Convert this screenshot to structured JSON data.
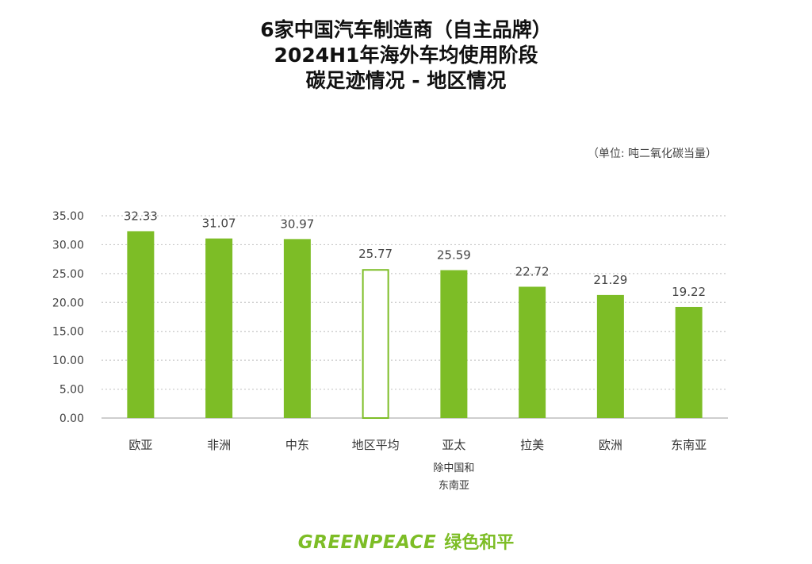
{
  "title_lines": [
    "6家中国汽车制造商（自主品牌）",
    "2024H1年海外车均使用阶段",
    "碳足迹情况 - 地区情况"
  ],
  "unit_note": "（单位: 吨二氧化碳当量）",
  "footer": {
    "logo_en": "GREENPEACE",
    "logo_cn": "绿色和平"
  },
  "colors": {
    "bar": "#7dbd26",
    "text": "#444444",
    "grid": "#c8c8c8"
  },
  "chart_data": {
    "type": "bar",
    "categories": [
      "欧亚",
      "非洲",
      "中东",
      "地区平均",
      "亚太",
      "拉美",
      "欧洲",
      "东南亚"
    ],
    "category_notes": [
      "",
      "",
      "",
      "",
      "除中国和\n东南亚",
      "",
      "",
      ""
    ],
    "values": [
      32.33,
      31.07,
      30.97,
      25.77,
      25.59,
      22.72,
      21.29,
      19.22
    ],
    "highlight_outline": [
      false,
      false,
      false,
      true,
      false,
      false,
      false,
      false
    ],
    "value_labels": [
      "32.33",
      "31.07",
      "30.97",
      "25.77",
      "25.59",
      "22.72",
      "21.29",
      "19.22"
    ],
    "yticks": [
      "0.00",
      "5.00",
      "10.00",
      "15.00",
      "20.00",
      "25.00",
      "30.00",
      "35.00"
    ],
    "ylim": [
      0,
      35
    ],
    "grid": true,
    "title": "",
    "xlabel": "",
    "ylabel": ""
  }
}
